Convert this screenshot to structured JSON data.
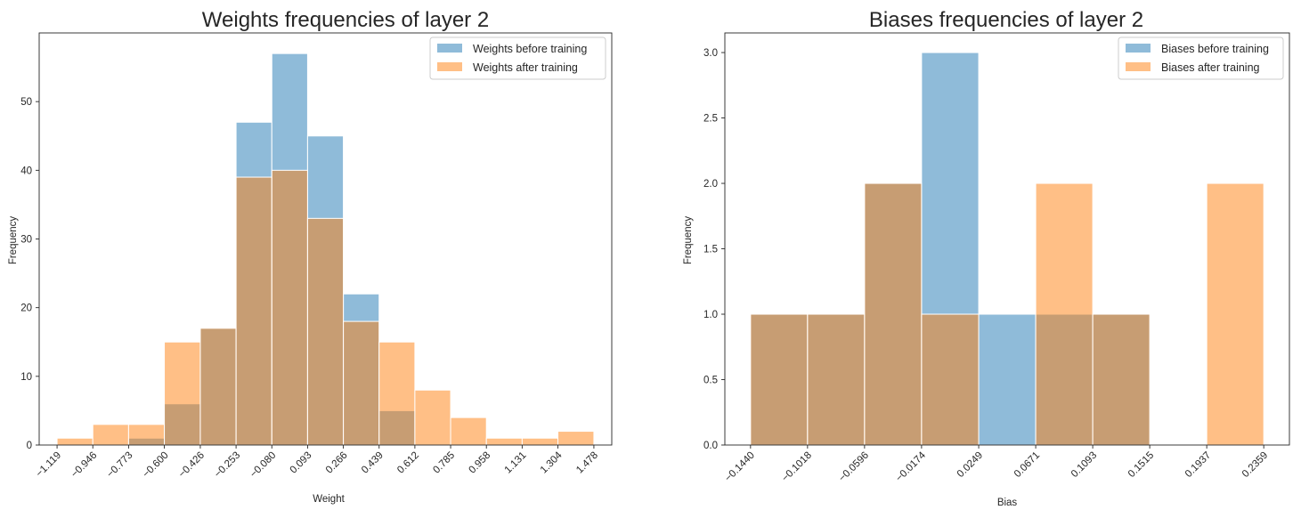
{
  "colors": {
    "before": "#1f77b4",
    "after": "#ff7f0e",
    "bar_alpha": 0.5,
    "edge": "#ffffff",
    "axis": "#262626"
  },
  "chart_data": [
    {
      "type": "bar",
      "title": "Weights frequencies of layer 2",
      "xlabel": "Weight",
      "ylabel": "Frequency",
      "xlim": [
        -1.2055,
        1.5645
      ],
      "ylim": [
        0,
        60
      ],
      "yticks": [
        0,
        10,
        20,
        30,
        40,
        50
      ],
      "xtick_labels": [
        "−1.119",
        "−0.946",
        "−0.773",
        "−0.600",
        "−0.426",
        "−0.253",
        "−0.080",
        "0.093",
        "0.266",
        "0.439",
        "0.612",
        "0.785",
        "0.958",
        "1.131",
        "1.304",
        "1.478"
      ],
      "bin_edges": [
        -1.119,
        -0.946,
        -0.773,
        -0.6,
        -0.426,
        -0.253,
        -0.08,
        0.093,
        0.266,
        0.439,
        0.612,
        0.785,
        0.958,
        1.131,
        1.304,
        1.478
      ],
      "legend_position": "top-right",
      "series": [
        {
          "name": "Weights before training",
          "color_key": "before",
          "values": [
            0,
            0,
            1,
            6,
            17,
            47,
            57,
            45,
            22,
            5,
            0,
            0,
            0,
            0,
            0
          ]
        },
        {
          "name": "Weights after training",
          "color_key": "after",
          "values": [
            1,
            3,
            3,
            15,
            17,
            39,
            40,
            33,
            18,
            15,
            8,
            4,
            1,
            1,
            2
          ]
        }
      ]
    },
    {
      "type": "bar",
      "title": "Biases frequencies of layer 2",
      "xlabel": "Bias",
      "ylabel": "Frequency",
      "xlim": [
        -0.163,
        0.2549
      ],
      "ylim": [
        0,
        3.15
      ],
      "yticks": [
        0.0,
        0.5,
        1.0,
        1.5,
        2.0,
        2.5,
        3.0
      ],
      "ytick_labels": [
        "0.0",
        "0.5",
        "1.0",
        "1.5",
        "2.0",
        "2.5",
        "3.0"
      ],
      "xtick_labels": [
        "−0.1440",
        "−0.1018",
        "−0.0596",
        "−0.0174",
        "0.0249",
        "0.0671",
        "0.1093",
        "0.1515",
        "0.1937",
        "0.2359"
      ],
      "bin_edges": [
        -0.144,
        -0.1018,
        -0.0596,
        -0.0174,
        0.0249,
        0.0671,
        0.1093,
        0.1515,
        0.1937,
        0.2359
      ],
      "legend_position": "top-right",
      "series": [
        {
          "name": "Biases before training",
          "color_key": "before",
          "values": [
            1,
            1,
            2,
            3,
            1,
            1,
            1,
            0,
            0
          ]
        },
        {
          "name": "Biases after training",
          "color_key": "after",
          "values": [
            1,
            1,
            2,
            1,
            0,
            2,
            1,
            0,
            2
          ]
        }
      ]
    }
  ]
}
